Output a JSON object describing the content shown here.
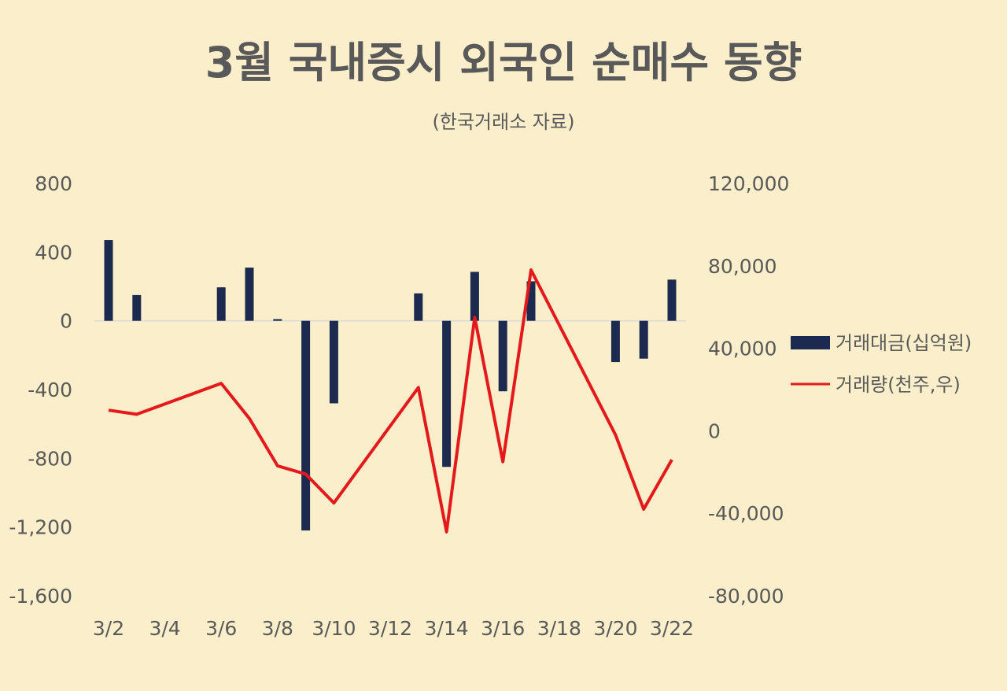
{
  "chart_data": {
    "type": "bar+line",
    "title": "3월 국내증시 외국인 순매수 동향",
    "subtitle": "(한국거래소 자료)",
    "x": [
      "3/2",
      "3/3",
      "3/4",
      "3/5",
      "3/6",
      "3/7",
      "3/8",
      "3/9",
      "3/10",
      "3/11",
      "3/12",
      "3/13",
      "3/14",
      "3/15",
      "3/16",
      "3/17",
      "3/18",
      "3/19",
      "3/20",
      "3/21",
      "3/22"
    ],
    "x_tick_labels": [
      "3/2",
      "3/4",
      "3/6",
      "3/8",
      "3/10",
      "3/12",
      "3/14",
      "3/16",
      "3/18",
      "3/20",
      "3/22"
    ],
    "left_axis": {
      "ylim": [
        -1600,
        800
      ],
      "ticks": [
        800,
        400,
        0,
        -400,
        -800,
        -1200,
        -1600
      ],
      "tick_labels": [
        "800",
        "400",
        "0",
        "-400",
        "-800",
        "-1,200",
        "-1,600"
      ]
    },
    "right_axis": {
      "ylim": [
        -80000,
        120000
      ],
      "ticks": [
        120000,
        80000,
        40000,
        0,
        -40000,
        -80000
      ],
      "tick_labels": [
        "120,000",
        "80,000",
        "40,000",
        "0",
        "-40,000",
        "-80,000"
      ]
    },
    "series": [
      {
        "name": "거래대금(십억원)",
        "type": "bar",
        "axis": "left",
        "color": "#1B2A4E",
        "values": [
          470,
          150,
          null,
          null,
          195,
          310,
          10,
          -1220,
          -480,
          null,
          null,
          160,
          -850,
          285,
          -410,
          230,
          null,
          null,
          -240,
          -220,
          240
        ]
      },
      {
        "name": "거래량(천주,우)",
        "type": "line",
        "axis": "right",
        "color": "#E3191C",
        "values": [
          10000,
          8000,
          null,
          null,
          23000,
          6000,
          -17000,
          -21000,
          -35000,
          null,
          null,
          21000,
          -49000,
          55000,
          -15000,
          78000,
          null,
          null,
          -2000,
          -38000,
          -14000
        ]
      }
    ],
    "legend_position": "right",
    "grid": false
  }
}
